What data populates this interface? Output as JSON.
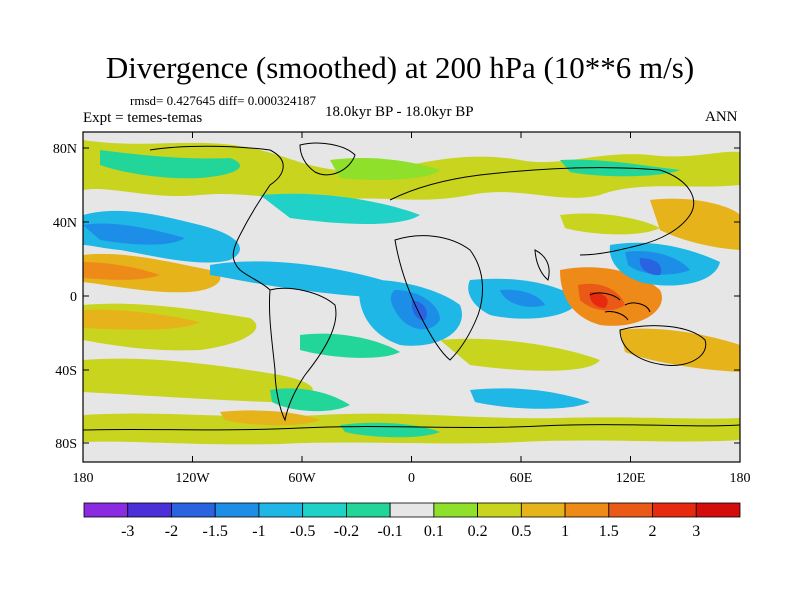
{
  "map": {
    "title": "Divergence (smoothed) at 200 hPa (10**6 m/s)",
    "stats_text": "rmsd= 0.427645 diff= 0.000324187",
    "experiment_text": "Expt = temes-temas",
    "period_text": "18.0kyr BP - 18.0kyr BP",
    "season_text": "ANN",
    "lat_ticks": [
      "80N",
      "40N",
      "0",
      "40S",
      "80S"
    ],
    "lon_ticks": [
      "180",
      "120W",
      "60W",
      "0",
      "60E",
      "120E",
      "180"
    ],
    "colorbar": {
      "labels": [
        "-3",
        "-2",
        "-1.5",
        "-1",
        "-0.5",
        "-0.2",
        "-0.1",
        "0.1",
        "0.2",
        "0.5",
        "1",
        "1.5",
        "2",
        "3"
      ],
      "colors": [
        "#8a2be2",
        "#4b2fd8",
        "#2a63e0",
        "#1c8ee8",
        "#1fb7e6",
        "#20d1c8",
        "#22d69a",
        "#e6e6e6",
        "#8ee02a",
        "#c8d41e",
        "#e6b31a",
        "#ee8a18",
        "#ea5a16",
        "#e62a10",
        "#d40c0c"
      ]
    }
  }
}
